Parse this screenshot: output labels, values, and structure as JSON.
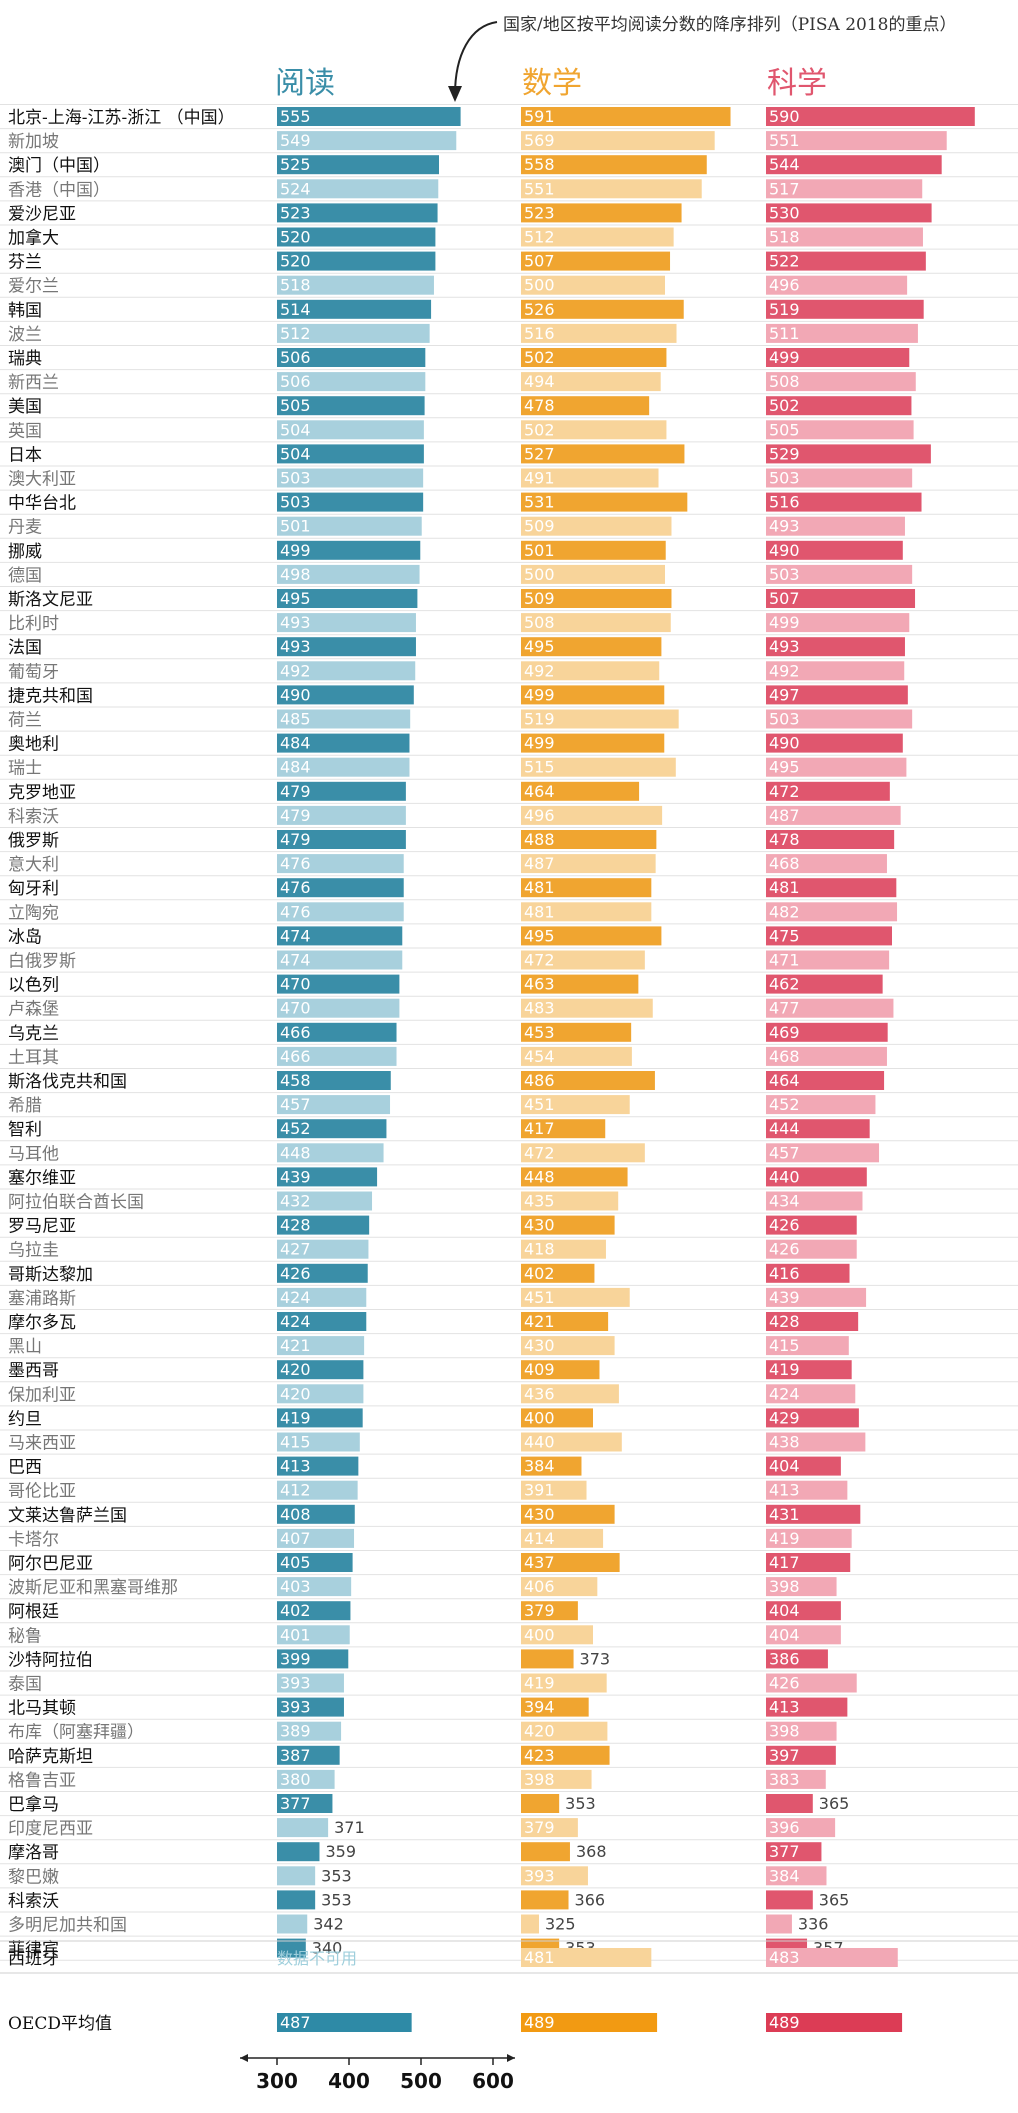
{
  "annotation": "国家/地区按平均阅读分数的降序排列（PISA 2018的重点）",
  "headers": {
    "reading": "阅读",
    "math": "数学",
    "science": "科学"
  },
  "colors": {
    "reading_dark": "#3a8ea8",
    "reading_light": "#a8d0dd",
    "math_dark": "#f0a530",
    "math_light": "#f8d49a",
    "science_dark": "#e0566e",
    "science_light": "#f2a8b5",
    "oecd_reading": "#2e8aa6",
    "oecd_math": "#f29a12",
    "oecd_science": "#dc3c55"
  },
  "chart_data": {
    "type": "bar",
    "orientation": "horizontal",
    "xlim": [
      300,
      600
    ],
    "xticks": [
      "300",
      "400",
      "500",
      "600"
    ],
    "series": [
      {
        "name": "阅读"
      },
      {
        "name": "数学"
      },
      {
        "name": "科学"
      }
    ],
    "rows": [
      {
        "label": "北京-上海-江苏-浙江 （中国）",
        "reading": 555,
        "math": 591,
        "science": 590,
        "strong": [
          true,
          true,
          true
        ]
      },
      {
        "label": "新加坡",
        "reading": 549,
        "math": 569,
        "science": 551,
        "strong": [
          false,
          false,
          false
        ]
      },
      {
        "label": "澳门（中国）",
        "reading": 525,
        "math": 558,
        "science": 544,
        "strong": [
          true,
          true,
          true
        ]
      },
      {
        "label": "香港（中国）",
        "reading": 524,
        "math": 551,
        "science": 517,
        "strong": [
          false,
          false,
          false
        ]
      },
      {
        "label": "爱沙尼亚",
        "reading": 523,
        "math": 523,
        "science": 530,
        "strong": [
          true,
          true,
          true
        ]
      },
      {
        "label": "加拿大",
        "reading": 520,
        "math": 512,
        "science": 518,
        "strong": [
          true,
          false,
          false
        ]
      },
      {
        "label": "芬兰",
        "reading": 520,
        "math": 507,
        "science": 522,
        "strong": [
          true,
          true,
          true
        ]
      },
      {
        "label": "爱尔兰",
        "reading": 518,
        "math": 500,
        "science": 496,
        "strong": [
          false,
          false,
          false
        ]
      },
      {
        "label": "韩国",
        "reading": 514,
        "math": 526,
        "science": 519,
        "strong": [
          true,
          true,
          true
        ]
      },
      {
        "label": "波兰",
        "reading": 512,
        "math": 516,
        "science": 511,
        "strong": [
          false,
          false,
          false
        ]
      },
      {
        "label": "瑞典",
        "reading": 506,
        "math": 502,
        "science": 499,
        "strong": [
          true,
          true,
          true
        ]
      },
      {
        "label": "新西兰",
        "reading": 506,
        "math": 494,
        "science": 508,
        "strong": [
          false,
          false,
          false
        ]
      },
      {
        "label": "美国",
        "reading": 505,
        "math": 478,
        "science": 502,
        "strong": [
          true,
          true,
          true
        ]
      },
      {
        "label": "英国",
        "reading": 504,
        "math": 502,
        "science": 505,
        "strong": [
          false,
          false,
          false
        ]
      },
      {
        "label": "日本",
        "reading": 504,
        "math": 527,
        "science": 529,
        "strong": [
          true,
          true,
          true
        ]
      },
      {
        "label": "澳大利亚",
        "reading": 503,
        "math": 491,
        "science": 503,
        "strong": [
          false,
          false,
          false
        ]
      },
      {
        "label": "中华台北",
        "reading": 503,
        "math": 531,
        "science": 516,
        "strong": [
          true,
          true,
          true
        ]
      },
      {
        "label": "丹麦",
        "reading": 501,
        "math": 509,
        "science": 493,
        "strong": [
          false,
          false,
          false
        ]
      },
      {
        "label": "挪威",
        "reading": 499,
        "math": 501,
        "science": 490,
        "strong": [
          true,
          true,
          true
        ]
      },
      {
        "label": "德国",
        "reading": 498,
        "math": 500,
        "science": 503,
        "strong": [
          false,
          false,
          false
        ]
      },
      {
        "label": "斯洛文尼亚",
        "reading": 495,
        "math": 509,
        "science": 507,
        "strong": [
          true,
          true,
          true
        ]
      },
      {
        "label": "比利时",
        "reading": 493,
        "math": 508,
        "science": 499,
        "strong": [
          false,
          false,
          false
        ]
      },
      {
        "label": "法国",
        "reading": 493,
        "math": 495,
        "science": 493,
        "strong": [
          true,
          true,
          true
        ]
      },
      {
        "label": "葡萄牙",
        "reading": 492,
        "math": 492,
        "science": 492,
        "strong": [
          false,
          false,
          false
        ]
      },
      {
        "label": "捷克共和国",
        "reading": 490,
        "math": 499,
        "science": 497,
        "strong": [
          true,
          true,
          true
        ]
      },
      {
        "label": "荷兰",
        "reading": 485,
        "math": 519,
        "science": 503,
        "strong": [
          false,
          false,
          false
        ]
      },
      {
        "label": "奥地利",
        "reading": 484,
        "math": 499,
        "science": 490,
        "strong": [
          true,
          true,
          true
        ]
      },
      {
        "label": "瑞士",
        "reading": 484,
        "math": 515,
        "science": 495,
        "strong": [
          false,
          false,
          false
        ]
      },
      {
        "label": "克罗地亚",
        "reading": 479,
        "math": 464,
        "science": 472,
        "strong": [
          true,
          true,
          true
        ]
      },
      {
        "label": "科索沃",
        "reading": 479,
        "math": 496,
        "science": 487,
        "strong": [
          false,
          false,
          false
        ]
      },
      {
        "label": "俄罗斯",
        "reading": 479,
        "math": 488,
        "science": 478,
        "strong": [
          true,
          true,
          true
        ]
      },
      {
        "label": "意大利",
        "reading": 476,
        "math": 487,
        "science": 468,
        "strong": [
          false,
          false,
          false
        ]
      },
      {
        "label": "匈牙利",
        "reading": 476,
        "math": 481,
        "science": 481,
        "strong": [
          true,
          true,
          true
        ]
      },
      {
        "label": "立陶宛",
        "reading": 476,
        "math": 481,
        "science": 482,
        "strong": [
          false,
          false,
          false
        ]
      },
      {
        "label": "冰岛",
        "reading": 474,
        "math": 495,
        "science": 475,
        "strong": [
          true,
          true,
          true
        ]
      },
      {
        "label": "白俄罗斯",
        "reading": 474,
        "math": 472,
        "science": 471,
        "strong": [
          false,
          false,
          false
        ]
      },
      {
        "label": "以色列",
        "reading": 470,
        "math": 463,
        "science": 462,
        "strong": [
          true,
          true,
          true
        ]
      },
      {
        "label": "卢森堡",
        "reading": 470,
        "math": 483,
        "science": 477,
        "strong": [
          false,
          false,
          false
        ]
      },
      {
        "label": "乌克兰",
        "reading": 466,
        "math": 453,
        "science": 469,
        "strong": [
          true,
          true,
          true
        ]
      },
      {
        "label": "土耳其",
        "reading": 466,
        "math": 454,
        "science": 468,
        "strong": [
          false,
          false,
          false
        ]
      },
      {
        "label": "斯洛伐克共和国",
        "reading": 458,
        "math": 486,
        "science": 464,
        "strong": [
          true,
          true,
          true
        ]
      },
      {
        "label": "希腊",
        "reading": 457,
        "math": 451,
        "science": 452,
        "strong": [
          false,
          false,
          false
        ]
      },
      {
        "label": "智利",
        "reading": 452,
        "math": 417,
        "science": 444,
        "strong": [
          true,
          true,
          true
        ]
      },
      {
        "label": "马耳他",
        "reading": 448,
        "math": 472,
        "science": 457,
        "strong": [
          false,
          false,
          false
        ]
      },
      {
        "label": "塞尔维亚",
        "reading": 439,
        "math": 448,
        "science": 440,
        "strong": [
          true,
          true,
          true
        ]
      },
      {
        "label": "阿拉伯联合酋长国",
        "reading": 432,
        "math": 435,
        "science": 434,
        "strong": [
          false,
          false,
          false
        ]
      },
      {
        "label": "罗马尼亚",
        "reading": 428,
        "math": 430,
        "science": 426,
        "strong": [
          true,
          true,
          true
        ]
      },
      {
        "label": "乌拉圭",
        "reading": 427,
        "math": 418,
        "science": 426,
        "strong": [
          false,
          false,
          false
        ]
      },
      {
        "label": "哥斯达黎加",
        "reading": 426,
        "math": 402,
        "science": 416,
        "strong": [
          true,
          true,
          true
        ]
      },
      {
        "label": "塞浦路斯",
        "reading": 424,
        "math": 451,
        "science": 439,
        "strong": [
          false,
          false,
          false
        ]
      },
      {
        "label": "摩尔多瓦",
        "reading": 424,
        "math": 421,
        "science": 428,
        "strong": [
          true,
          true,
          true
        ]
      },
      {
        "label": "黑山",
        "reading": 421,
        "math": 430,
        "science": 415,
        "strong": [
          false,
          false,
          false
        ]
      },
      {
        "label": "墨西哥",
        "reading": 420,
        "math": 409,
        "science": 419,
        "strong": [
          true,
          true,
          true
        ]
      },
      {
        "label": "保加利亚",
        "reading": 420,
        "math": 436,
        "science": 424,
        "strong": [
          false,
          false,
          false
        ]
      },
      {
        "label": "约旦",
        "reading": 419,
        "math": 400,
        "science": 429,
        "strong": [
          true,
          true,
          true
        ]
      },
      {
        "label": "马来西亚",
        "reading": 415,
        "math": 440,
        "science": 438,
        "strong": [
          false,
          false,
          false
        ]
      },
      {
        "label": "巴西",
        "reading": 413,
        "math": 384,
        "science": 404,
        "strong": [
          true,
          true,
          true
        ]
      },
      {
        "label": "哥伦比亚",
        "reading": 412,
        "math": 391,
        "science": 413,
        "strong": [
          false,
          false,
          false
        ]
      },
      {
        "label": "文莱达鲁萨兰国",
        "reading": 408,
        "math": 430,
        "science": 431,
        "strong": [
          true,
          true,
          true
        ]
      },
      {
        "label": "卡塔尔",
        "reading": 407,
        "math": 414,
        "science": 419,
        "strong": [
          false,
          false,
          false
        ]
      },
      {
        "label": "阿尔巴尼亚",
        "reading": 405,
        "math": 437,
        "science": 417,
        "strong": [
          true,
          true,
          true
        ]
      },
      {
        "label": "波斯尼亚和黑塞哥维那",
        "reading": 403,
        "math": 406,
        "science": 398,
        "strong": [
          false,
          false,
          false
        ]
      },
      {
        "label": "阿根廷",
        "reading": 402,
        "math": 379,
        "science": 404,
        "strong": [
          true,
          true,
          true
        ]
      },
      {
        "label": "秘鲁",
        "reading": 401,
        "math": 400,
        "science": 404,
        "strong": [
          false,
          false,
          false
        ]
      },
      {
        "label": "沙特阿拉伯",
        "reading": 399,
        "math": 373,
        "science": 386,
        "strong": [
          true,
          true,
          true
        ]
      },
      {
        "label": "泰国",
        "reading": 393,
        "math": 419,
        "science": 426,
        "strong": [
          false,
          false,
          false
        ]
      },
      {
        "label": "北马其顿",
        "reading": 393,
        "math": 394,
        "science": 413,
        "strong": [
          true,
          true,
          true
        ]
      },
      {
        "label": "布库（阿塞拜疆）",
        "reading": 389,
        "math": 420,
        "science": 398,
        "strong": [
          false,
          false,
          false
        ]
      },
      {
        "label": "哈萨克斯坦",
        "reading": 387,
        "math": 423,
        "science": 397,
        "strong": [
          true,
          true,
          true
        ]
      },
      {
        "label": "格鲁吉亚",
        "reading": 380,
        "math": 398,
        "science": 383,
        "strong": [
          false,
          false,
          false
        ]
      },
      {
        "label": "巴拿马",
        "reading": 377,
        "math": 353,
        "science": 365,
        "strong": [
          true,
          true,
          true
        ]
      },
      {
        "label": "印度尼西亚",
        "reading": 371,
        "math": 379,
        "science": 396,
        "strong": [
          false,
          false,
          false
        ]
      },
      {
        "label": "摩洛哥",
        "reading": 359,
        "math": 368,
        "science": 377,
        "strong": [
          true,
          true,
          true
        ]
      },
      {
        "label": "黎巴嫩",
        "reading": 353,
        "math": 393,
        "science": 384,
        "strong": [
          false,
          false,
          false
        ]
      },
      {
        "label": "科索沃",
        "reading": 353,
        "math": 366,
        "science": 365,
        "strong": [
          true,
          true,
          true
        ]
      },
      {
        "label": "多明尼加共和国",
        "reading": 342,
        "math": 325,
        "science": 336,
        "strong": [
          false,
          false,
          false
        ]
      },
      {
        "label": "菲律宾",
        "reading": 340,
        "math": 353,
        "science": 357,
        "strong": [
          true,
          true,
          true
        ]
      }
    ],
    "extra_row": {
      "label": "西班牙",
      "reading_text": "数据不可用",
      "reading": null,
      "math": 481,
      "science": 483
    },
    "oecd_row": {
      "label": "OECD平均值",
      "reading": 487,
      "math": 489,
      "science": 489
    }
  }
}
